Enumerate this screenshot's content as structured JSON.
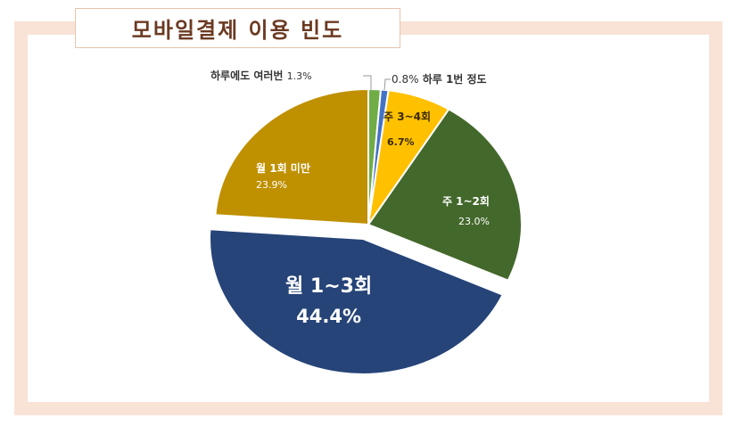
{
  "title": "모바일결제 이용 빈도",
  "colors": {
    "frame": "#f9e3d6",
    "title_border": "#e8c4ae",
    "title_text": "#6b3a22"
  },
  "labels": {
    "s0": {
      "name": "하루에도 여러번",
      "value": "1.3%"
    },
    "s1": {
      "name": "하루 1번 정도",
      "value": "0.8%"
    },
    "s2": {
      "name": "주 3~4회",
      "value": "6.7%"
    },
    "s3": {
      "name": "주 1~2회",
      "value": "23.0%"
    },
    "s4": {
      "name": "월 1~3회",
      "value": "44.4%"
    },
    "s5": {
      "name": "월 1회 미만",
      "value": "23.9%"
    }
  },
  "chart_data": {
    "type": "pie",
    "title": "모바일결제 이용 빈도",
    "categories": [
      "하루에도 여러번",
      "하루 1번 정도",
      "주 3~4회",
      "주 1~2회",
      "월 1~3회",
      "월 1회 미만"
    ],
    "values": [
      1.3,
      0.8,
      6.7,
      23.0,
      44.4,
      23.9
    ],
    "unit": "%",
    "colors": [
      "#70ad47",
      "#4472c4",
      "#ffc000",
      "#43682b",
      "#264478",
      "#bf9000"
    ],
    "exploded": [
      "월 1~3회"
    ],
    "start_angle": "12 o'clock, clockwise",
    "legend": "none (data labels on slices)"
  }
}
